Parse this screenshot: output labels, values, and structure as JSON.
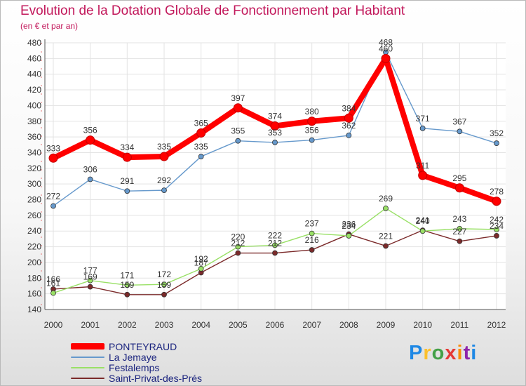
{
  "chart_data": {
    "type": "line",
    "title": "Evolution de la Dotation Globale de Fonctionnement par Habitant",
    "subtitle": "(en € et par an)",
    "xlabel": "",
    "ylabel": "",
    "categories": [
      "2000",
      "2001",
      "2002",
      "2003",
      "2004",
      "2005",
      "2006",
      "2007",
      "2008",
      "2009",
      "2010",
      "2011",
      "2012"
    ],
    "ylim": [
      140,
      480
    ],
    "yticks": [
      140,
      160,
      180,
      200,
      220,
      240,
      260,
      280,
      300,
      320,
      340,
      360,
      380,
      400,
      420,
      440,
      460,
      480
    ],
    "grid": true,
    "legend_position": "bottom-left",
    "series": [
      {
        "name": "PONTEYRAUD",
        "color": "#ff0000",
        "values": [
          333,
          356,
          334,
          335,
          365,
          397,
          374,
          380,
          384,
          460,
          311,
          295,
          278
        ],
        "labels": [
          "333",
          "356",
          "334",
          "335",
          "365",
          "397",
          "374",
          "380",
          "384",
          "460",
          "311",
          "295",
          "278"
        ]
      },
      {
        "name": "La Jemaye",
        "color": "#6699cc",
        "values": [
          272,
          306,
          291,
          292,
          335,
          355,
          353,
          356,
          362,
          468,
          371,
          367,
          352
        ],
        "labels": [
          "272",
          "306",
          "291",
          "292",
          "335",
          "355",
          "353",
          "356",
          "362",
          "468",
          "371",
          "367",
          "352"
        ]
      },
      {
        "name": "Festalemps",
        "color": "#99e066",
        "values": [
          161,
          177,
          171,
          172,
          192,
          220,
          222,
          237,
          234,
          269,
          240,
          243,
          242
        ],
        "labels": [
          "161",
          "177",
          "171",
          "172",
          "192",
          "220",
          "222",
          "237",
          "234",
          "269",
          "240",
          "243",
          "242"
        ]
      },
      {
        "name": "Saint-Privat-des-Prés",
        "color": "#7b2a2a",
        "values": [
          166,
          169,
          159,
          159,
          187,
          212,
          212,
          216,
          236,
          221,
          241,
          227,
          234
        ],
        "labels": [
          "166",
          "169",
          "159",
          "159",
          "187",
          "212",
          "212",
          "216",
          "236",
          "221",
          "241",
          "227",
          "234"
        ]
      }
    ]
  },
  "brand": {
    "letters": [
      "P",
      "r",
      "o",
      "x",
      "i",
      "t",
      "i"
    ]
  }
}
